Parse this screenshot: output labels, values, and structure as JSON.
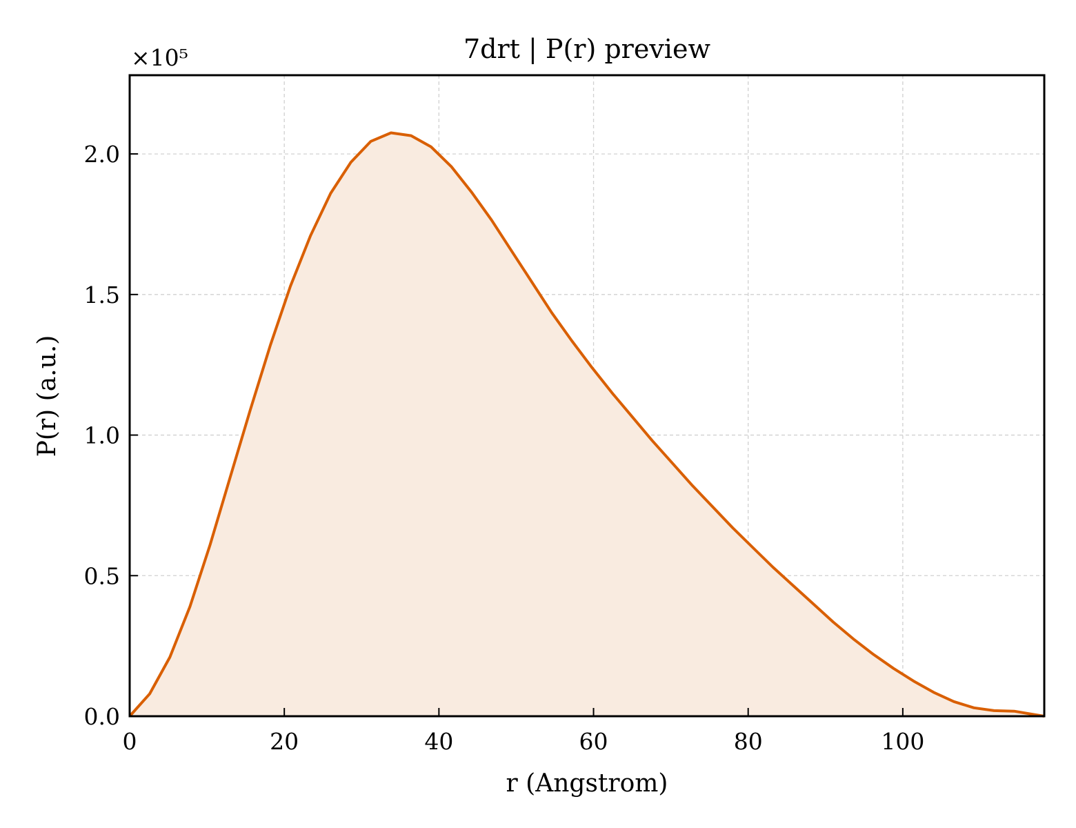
{
  "chart_data": {
    "type": "area",
    "title": "7drt | P(r) preview",
    "xlabel": "r (Angstrom)",
    "ylabel": "P(r) (a.u.)",
    "y_multiplier_label": "×10⁵",
    "y_scale": 100000,
    "xlim": [
      0,
      118.3
    ],
    "ylim": [
      0,
      2.28
    ],
    "xticks": [
      0,
      20,
      40,
      60,
      80,
      100
    ],
    "xtick_labels": [
      "0",
      "20",
      "40",
      "60",
      "80",
      "100"
    ],
    "yticks": [
      0.0,
      0.5,
      1.0,
      1.5,
      2.0
    ],
    "ytick_labels": [
      "0.0",
      "0.5",
      "1.0",
      "1.5",
      "2.0"
    ],
    "grid": true,
    "colors": {
      "line": "#d95f02",
      "fill": "#f9ebe0",
      "grid": "#d0d0d0"
    },
    "x": [
      0,
      2.6,
      5.2,
      7.8,
      10.4,
      13.0,
      15.6,
      18.2,
      20.8,
      23.4,
      26.0,
      28.6,
      31.2,
      33.8,
      36.4,
      39.0,
      41.6,
      44.2,
      46.8,
      49.4,
      52.0,
      54.6,
      57.2,
      59.8,
      62.4,
      65.0,
      67.6,
      70.2,
      72.8,
      75.4,
      78.0,
      80.6,
      83.2,
      85.8,
      88.4,
      91.0,
      93.6,
      96.2,
      98.8,
      101.4,
      104.0,
      106.6,
      109.2,
      111.8,
      114.4,
      117.0,
      118.3
    ],
    "y": [
      0.0,
      0.08,
      0.21,
      0.39,
      0.61,
      0.85,
      1.09,
      1.32,
      1.53,
      1.71,
      1.86,
      1.97,
      2.045,
      2.075,
      2.065,
      2.025,
      1.955,
      1.865,
      1.765,
      1.655,
      1.545,
      1.435,
      1.335,
      1.24,
      1.15,
      1.065,
      0.98,
      0.9,
      0.82,
      0.745,
      0.67,
      0.6,
      0.53,
      0.465,
      0.4,
      0.335,
      0.275,
      0.22,
      0.17,
      0.125,
      0.085,
      0.052,
      0.03,
      0.02,
      0.018,
      0.006,
      0.0
    ]
  }
}
